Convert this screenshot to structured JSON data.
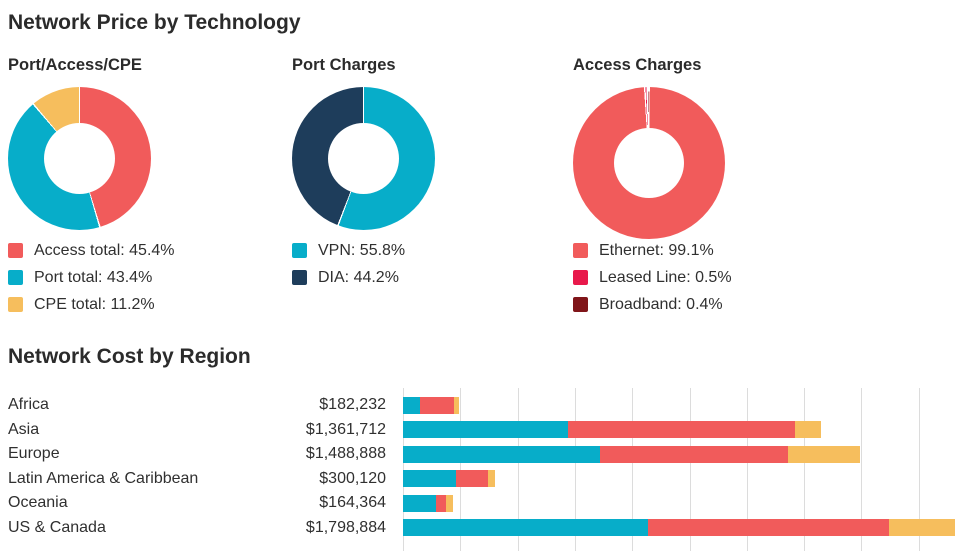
{
  "page": {
    "price_title": "Network Price by Technology",
    "cost_title": "Network Cost by Region"
  },
  "colors": {
    "teal": "#07ADC9",
    "red": "#F15B5B",
    "orange": "#F6BE5D",
    "navy": "#1E3D5B",
    "crimson": "#E8194B",
    "maroon": "#801519",
    "gridline": "#DCDCDC",
    "heading_text": "#2B2B2B"
  },
  "chart_data": [
    {
      "type": "pie",
      "donut": true,
      "title": "Port/Access/CPE",
      "labels": [
        "Access total",
        "Port total",
        "CPE total"
      ],
      "values": [
        45.4,
        43.4,
        11.2
      ],
      "unit": "%",
      "colors": [
        "#F15B5B",
        "#07ADC9",
        "#F6BE5D"
      ],
      "legend_entries": [
        "Access total: 45.4%",
        "Port total: 43.4%",
        "CPE total: 11.2%"
      ],
      "legend_position": "bottom"
    },
    {
      "type": "pie",
      "donut": true,
      "title": "Port Charges",
      "labels": [
        "VPN",
        "DIA"
      ],
      "values": [
        55.8,
        44.2
      ],
      "unit": "%",
      "colors": [
        "#07ADC9",
        "#1E3D5B"
      ],
      "legend_entries": [
        "VPN: 55.8%",
        "DIA: 44.2%"
      ],
      "legend_position": "bottom"
    },
    {
      "type": "pie",
      "donut": true,
      "title": "Access Charges",
      "labels": [
        "Ethernet",
        "Leased Line",
        "Broadband"
      ],
      "values": [
        99.1,
        0.5,
        0.4
      ],
      "unit": "%",
      "colors": [
        "#F15B5B",
        "#E8194B",
        "#801519"
      ],
      "legend_entries": [
        "Ethernet: 99.1%",
        "Leased Line: 0.5%",
        "Broadband: 0.4%"
      ],
      "legend_position": "bottom"
    },
    {
      "type": "bar",
      "orientation": "horizontal",
      "stacked": true,
      "title": "Network Cost by Region",
      "categories": [
        "Africa",
        "Asia",
        "Europe",
        "Latin America & Caribbean",
        "Oceania",
        "US & Canada"
      ],
      "value_labels": [
        "$182,232",
        "$1,361,712",
        "$1,488,888",
        "$300,120",
        "$164,364",
        "$1,798,884"
      ],
      "totals": [
        182232,
        1361712,
        1488888,
        300120,
        164364,
        1798884
      ],
      "series": [
        {
          "name": "Port",
          "color": "#07ADC9",
          "values": [
            56000,
            539000,
            642000,
            171000,
            108000,
            799000
          ]
        },
        {
          "name": "Access",
          "color": "#F15B5B",
          "values": [
            111000,
            738000,
            612000,
            105000,
            34000,
            786000
          ]
        },
        {
          "name": "CPE",
          "color": "#F6BE5D",
          "values": [
            15232,
            84712,
            234888,
            24120,
            22364,
            213884
          ]
        }
      ],
      "xlim": [
        0,
        1825000
      ],
      "grid": true,
      "gridline_count": 10,
      "value_axis_labels_shown": false
    }
  ]
}
